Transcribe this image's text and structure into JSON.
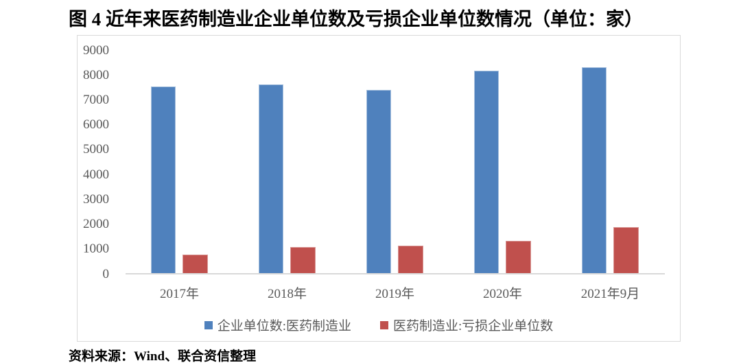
{
  "title": "图 4  近年来医药制造业企业单位数及亏损企业单位数情况（单位：家）",
  "source_note": "资料来源：Wind、联合资信整理",
  "colors": {
    "enterprise_series": "#4F81BD",
    "loss_series": "#C0504D",
    "axis_text": "#595959",
    "axis_line": "#D9D9D9",
    "chart_border": "#D9D9D9",
    "title_text": "#000000"
  },
  "chart_data": {
    "type": "bar",
    "title": "图 4  近年来医药制造业企业单位数及亏损企业单位数情况（单位：家）",
    "unit": "家",
    "categories": [
      "2017年",
      "2018年",
      "2019年",
      "2020年",
      "2021年9月"
    ],
    "series": [
      {
        "name": "企业单位数:医药制造业",
        "color": "#4F81BD",
        "values": [
          7550,
          7620,
          7410,
          8160,
          8300
        ]
      },
      {
        "name": "医药制造业:亏损企业单位数",
        "color": "#C0504D",
        "values": [
          780,
          1080,
          1120,
          1320,
          1880
        ]
      }
    ],
    "xlabel": "",
    "ylabel": "",
    "ylim": [
      0,
      9000
    ],
    "y_ticks": [
      0,
      1000,
      2000,
      3000,
      4000,
      5000,
      6000,
      7000,
      8000,
      9000
    ],
    "grid": false,
    "legend_position": "bottom"
  }
}
